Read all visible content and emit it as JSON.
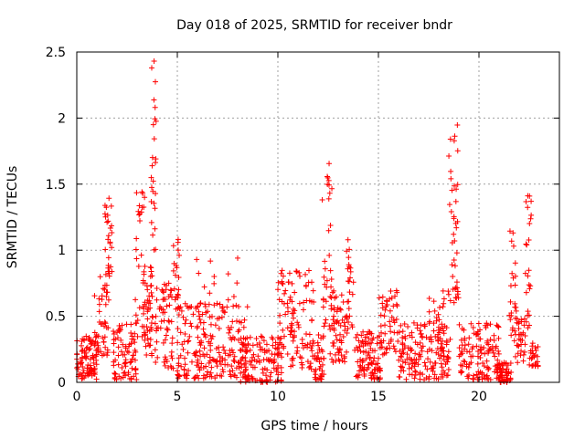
{
  "chart_data": {
    "type": "scatter",
    "title": "Day 018 of 2025, SRMTID for receiver bndr",
    "xlabel": "GPS time / hours",
    "ylabel": "SRMTID / TECUs",
    "xlim": [
      0,
      24
    ],
    "ylim": [
      0,
      2.5
    ],
    "xticks": [
      0,
      5,
      10,
      15,
      20
    ],
    "xtick_labels": [
      "0",
      "5",
      "10",
      "15",
      "20"
    ],
    "yticks": [
      0,
      0.5,
      1,
      1.5,
      2,
      2.5
    ],
    "ytick_labels": [
      "0",
      "0.5",
      "1",
      "1.5",
      "2",
      "2.5"
    ],
    "grid": true,
    "marker": "+",
    "color": "#ff0000",
    "series": [
      {
        "name": "SRMTID",
        "bursts": [
          {
            "t0": 0.0,
            "t1": 1.0,
            "lo": 0.02,
            "hi": 0.35,
            "n": 90
          },
          {
            "t0": 0.8,
            "t1": 1.6,
            "lo": 0.2,
            "hi": 0.8,
            "n": 45
          },
          {
            "t0": 1.4,
            "t1": 1.75,
            "lo": 0.8,
            "hi": 1.47,
            "n": 28
          },
          {
            "t0": 1.8,
            "t1": 3.0,
            "lo": 0.02,
            "hi": 0.45,
            "n": 80
          },
          {
            "t0": 2.9,
            "t1": 3.4,
            "lo": 0.3,
            "hi": 1.45,
            "n": 30
          },
          {
            "t0": 3.3,
            "t1": 3.8,
            "lo": 0.2,
            "hi": 0.9,
            "n": 50
          },
          {
            "t0": 3.7,
            "t1": 3.95,
            "lo": 1.0,
            "hi": 2.45,
            "n": 26
          },
          {
            "t0": 3.9,
            "t1": 4.8,
            "lo": 0.1,
            "hi": 0.75,
            "n": 60
          },
          {
            "t0": 4.8,
            "t1": 5.1,
            "lo": 0.5,
            "hi": 1.22,
            "n": 20
          },
          {
            "t0": 5.0,
            "t1": 8.5,
            "lo": 0.03,
            "hi": 0.6,
            "n": 220
          },
          {
            "t0": 5.5,
            "t1": 8.0,
            "lo": 0.5,
            "hi": 0.95,
            "n": 18
          },
          {
            "t0": 8.0,
            "t1": 10.2,
            "lo": 0.0,
            "hi": 0.35,
            "n": 120
          },
          {
            "t0": 10.0,
            "t1": 11.8,
            "lo": 0.1,
            "hi": 0.85,
            "n": 110
          },
          {
            "t0": 11.8,
            "t1": 12.3,
            "lo": 0.02,
            "hi": 0.4,
            "n": 40
          },
          {
            "t0": 12.2,
            "t1": 12.7,
            "lo": 0.4,
            "hi": 1.77,
            "n": 34
          },
          {
            "t0": 12.6,
            "t1": 13.5,
            "lo": 0.15,
            "hi": 0.7,
            "n": 60
          },
          {
            "t0": 13.4,
            "t1": 13.8,
            "lo": 0.4,
            "hi": 1.1,
            "n": 24
          },
          {
            "t0": 13.8,
            "t1": 15.2,
            "lo": 0.02,
            "hi": 0.4,
            "n": 100
          },
          {
            "t0": 15.0,
            "t1": 16.0,
            "lo": 0.2,
            "hi": 0.75,
            "n": 50
          },
          {
            "t0": 16.0,
            "t1": 18.5,
            "lo": 0.02,
            "hi": 0.45,
            "n": 160
          },
          {
            "t0": 17.5,
            "t1": 18.6,
            "lo": 0.3,
            "hi": 0.7,
            "n": 25
          },
          {
            "t0": 18.5,
            "t1": 19.0,
            "lo": 0.6,
            "hi": 1.96,
            "n": 40
          },
          {
            "t0": 19.0,
            "t1": 21.0,
            "lo": 0.02,
            "hi": 0.45,
            "n": 120
          },
          {
            "t0": 20.9,
            "t1": 21.6,
            "lo": 0.0,
            "hi": 0.15,
            "n": 60
          },
          {
            "t0": 21.5,
            "t1": 21.9,
            "lo": 0.3,
            "hi": 1.2,
            "n": 26
          },
          {
            "t0": 21.8,
            "t1": 22.3,
            "lo": 0.15,
            "hi": 0.5,
            "n": 30
          },
          {
            "t0": 22.3,
            "t1": 22.6,
            "lo": 0.4,
            "hi": 1.44,
            "n": 24
          },
          {
            "t0": 22.5,
            "t1": 22.95,
            "lo": 0.1,
            "hi": 0.3,
            "n": 25
          }
        ]
      }
    ]
  }
}
